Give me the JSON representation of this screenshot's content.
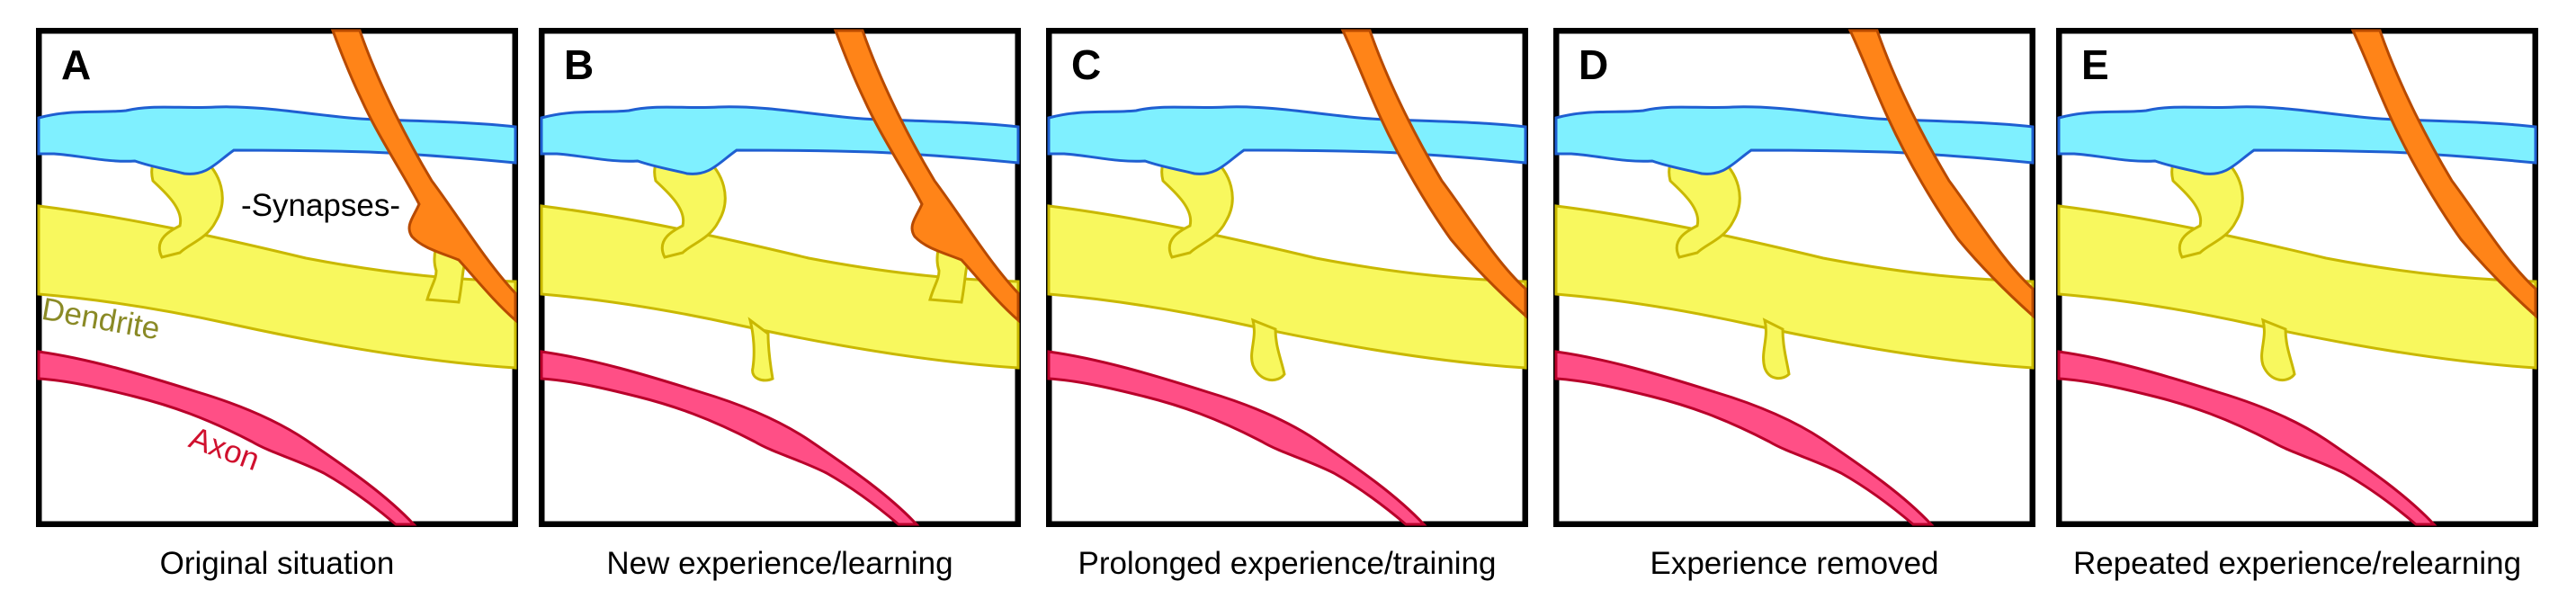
{
  "panels": [
    {
      "letter": "A",
      "caption": "Original situation",
      "labels": {
        "synapses": "-Synapses-",
        "dendrite": "Dendrite",
        "axon": "Axon"
      }
    },
    {
      "letter": "B",
      "caption": "New experience/learning"
    },
    {
      "letter": "C",
      "caption": "Prolonged experience/training"
    },
    {
      "letter": "D",
      "caption": "Experience removed"
    },
    {
      "letter": "E",
      "caption": "Repeated experience/relearning"
    }
  ],
  "colors": {
    "blue_axon_fill": "#7ff0ff",
    "blue_axon_stroke": "#1f5fd1",
    "orange_axon_fill": "#ff8418",
    "orange_axon_stroke": "#b84a00",
    "dendrite_fill": "#f8f85e",
    "dendrite_stroke": "#c9b800",
    "red_axon_fill": "#ff4f86",
    "red_axon_stroke": "#b8002a",
    "frame": "#000000"
  }
}
